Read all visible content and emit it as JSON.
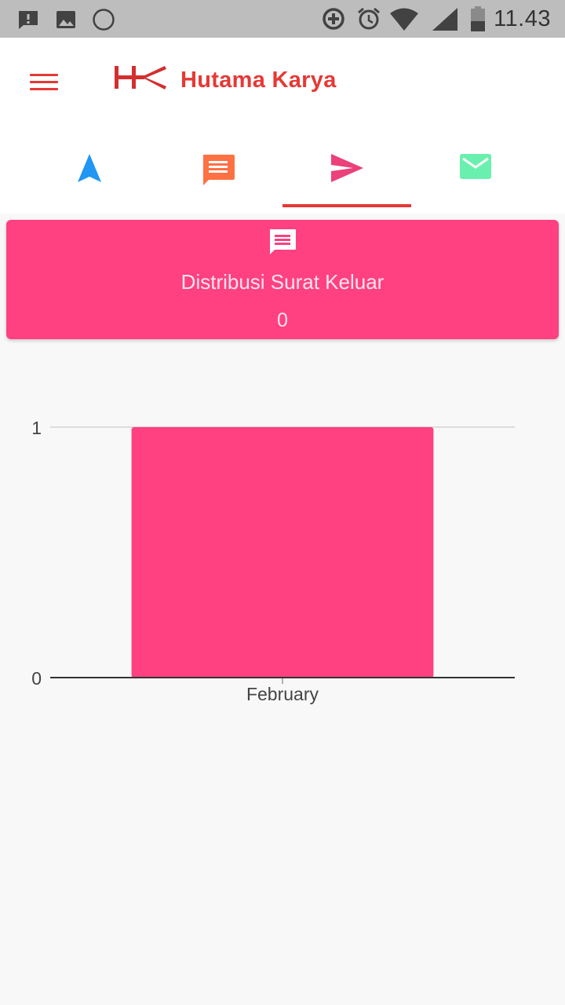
{
  "status_bar": {
    "time": "11.43",
    "icons": [
      "alert-message-icon",
      "image-icon",
      "circle-icon",
      "data-saver-icon",
      "alarm-icon",
      "wifi-icon",
      "signal-icon",
      "battery-icon"
    ]
  },
  "app_bar": {
    "brand": "Hutama Karya",
    "menu_icon": "hamburger-menu-icon",
    "logo": "hk-logo"
  },
  "tabs": [
    {
      "icon": "navigation-arrow-icon",
      "color": "#2196f3",
      "selected": false
    },
    {
      "icon": "chat-message-icon",
      "color": "#ff7043",
      "selected": false
    },
    {
      "icon": "send-icon",
      "color": "#ec407a",
      "selected": true
    },
    {
      "icon": "mail-icon",
      "color": "#69f0ae",
      "selected": false
    }
  ],
  "summary_card": {
    "icon": "chat-message-icon",
    "title": "Distribusi Surat Keluar",
    "count": "0",
    "color": "#ff4081"
  },
  "chart_data": {
    "type": "bar",
    "categories": [
      "February"
    ],
    "values": [
      1
    ],
    "ylim": [
      0,
      1
    ],
    "yticks": [
      "0",
      "1"
    ],
    "title": "",
    "xlabel": "",
    "ylabel": "",
    "bar_color": "#ff4081",
    "grid": true,
    "legend": "none"
  }
}
